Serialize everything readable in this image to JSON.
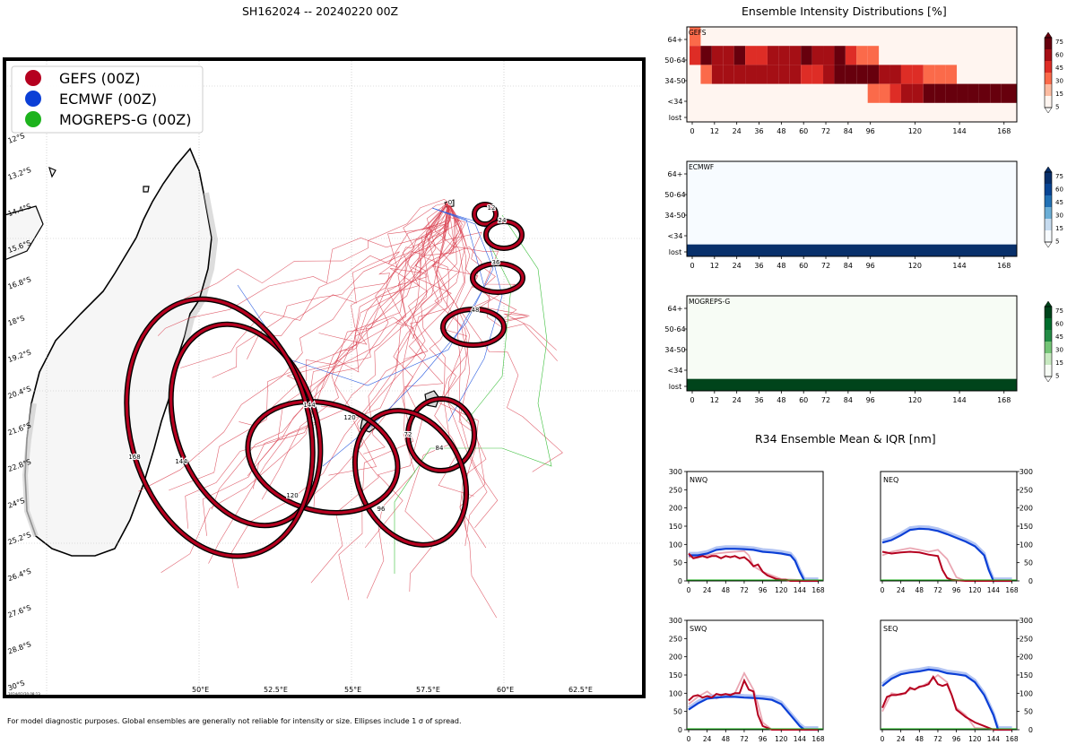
{
  "map": {
    "title": "SH162024 -- 20240220 00Z",
    "footnote": "For model diagnostic purposes. Global ensembles are generally not reliable for intensity or size. Ellipses include 1 σ of spread.",
    "legend": [
      {
        "label": "GEFS (00Z)",
        "color": "#b5001f"
      },
      {
        "label": "ECMWF (00Z)",
        "color": "#0b3fd6"
      },
      {
        "label": "MOGREPS-G (00Z)",
        "color": "#1db31d"
      }
    ],
    "lon_labels": [
      "50°E",
      "52.5°E",
      "55°E",
      "57.5°E",
      "60°E",
      "62.5°E"
    ],
    "lat_labels": [
      "12°S",
      "13.2°S",
      "14.4°S",
      "15.6°S",
      "16.8°S",
      "18°S",
      "19.2°S",
      "20.4°S",
      "21.6°S",
      "22.8°S",
      "24°S",
      "25.2°S",
      "26.4°S",
      "27.6°S",
      "28.8°S",
      "30°S"
    ],
    "ellipse_labels": [
      "0",
      "12",
      "24",
      "36",
      "48",
      "72",
      "96",
      "120",
      "144",
      "168",
      "84",
      "96",
      "120",
      "144"
    ],
    "timestamp": "2024/02/20 08:13"
  },
  "intensity": {
    "title": "Ensemble Intensity Distributions [%]",
    "y_labels": [
      "64+",
      "50-64",
      "34-50",
      "<34",
      "lost"
    ],
    "x_ticks": [
      "0",
      "12",
      "24",
      "36",
      "48",
      "60",
      "72",
      "84",
      "96",
      "120",
      "144",
      "168"
    ],
    "cbar_ticks": [
      "75",
      "60",
      "45",
      "30",
      "15",
      "5"
    ],
    "panels": [
      {
        "name": "GEFS",
        "cmap": "reds"
      },
      {
        "name": "ECMWF",
        "cmap": "blues"
      },
      {
        "name": "MOGREPS-G",
        "cmap": "greens"
      }
    ]
  },
  "r34": {
    "title": "R34 Ensemble Mean & IQR [nm]",
    "x_ticks": [
      "0",
      "24",
      "48",
      "72",
      "96",
      "120",
      "144",
      "168"
    ],
    "y_ticks": [
      "300",
      "250",
      "200",
      "150",
      "100",
      "50",
      "0"
    ],
    "colors": {
      "gefs": "#b5001f",
      "ecmwf": "#0b3fd6"
    }
  },
  "chart_data": [
    {
      "type": "heatmap",
      "title": "GEFS",
      "x": [
        0,
        6,
        12,
        18,
        24,
        30,
        36,
        42,
        48,
        54,
        60,
        66,
        72,
        78,
        84,
        90,
        96,
        102,
        108,
        114,
        120,
        126,
        132,
        138,
        144,
        150,
        156,
        162,
        168
      ],
      "rows": [
        "64+",
        "50-64",
        "34-50",
        "<34",
        "lost"
      ],
      "values": [
        [
          35,
          3,
          3,
          3,
          3,
          3,
          3,
          3,
          3,
          3,
          3,
          3,
          3,
          3,
          3,
          3,
          3,
          3,
          3,
          3,
          3,
          3,
          3,
          3,
          3,
          3,
          3,
          3,
          3
        ],
        [
          55,
          75,
          60,
          60,
          75,
          45,
          45,
          60,
          60,
          60,
          75,
          60,
          60,
          75,
          45,
          30,
          15,
          3,
          3,
          3,
          3,
          3,
          3,
          3,
          3,
          3,
          3,
          3,
          3
        ],
        [
          3,
          30,
          60,
          60,
          60,
          60,
          70,
          70,
          60,
          60,
          45,
          45,
          60,
          85,
          85,
          85,
          85,
          65,
          60,
          45,
          45,
          30,
          30,
          15,
          3,
          3,
          3,
          3,
          3
        ],
        [
          3,
          3,
          3,
          3,
          3,
          3,
          3,
          3,
          3,
          3,
          3,
          3,
          3,
          3,
          3,
          3,
          15,
          30,
          45,
          65,
          70,
          80,
          80,
          85,
          85,
          85,
          85,
          85,
          85
        ],
        [
          3,
          3,
          3,
          3,
          3,
          3,
          3,
          3,
          3,
          3,
          3,
          3,
          3,
          3,
          3,
          3,
          3,
          3,
          3,
          3,
          3,
          3,
          3,
          3,
          3,
          3,
          3,
          3,
          3
        ]
      ]
    },
    {
      "type": "heatmap",
      "title": "ECMWF",
      "x": [
        0,
        168
      ],
      "rows": [
        "64+",
        "50-64",
        "34-50",
        "<34",
        "lost"
      ],
      "values": [
        [
          0,
          0
        ],
        [
          0,
          0
        ],
        [
          0,
          0
        ],
        [
          0,
          0
        ],
        [
          100,
          100
        ]
      ]
    },
    {
      "type": "heatmap",
      "title": "MOGREPS-G",
      "x": [
        0,
        168
      ],
      "rows": [
        "64+",
        "50-64",
        "34-50",
        "<34",
        "lost"
      ],
      "values": [
        [
          0,
          0
        ],
        [
          0,
          0
        ],
        [
          0,
          0
        ],
        [
          0,
          0
        ],
        [
          100,
          100
        ]
      ]
    },
    {
      "type": "line",
      "title": "NWQ",
      "ylim": [
        0,
        300
      ],
      "xlim": [
        0,
        168
      ],
      "series": [
        {
          "name": "ECMWF mean",
          "x": [
            0,
            12,
            24,
            36,
            48,
            60,
            72,
            84,
            96,
            108,
            120,
            132,
            138,
            144,
            150,
            168
          ],
          "values": [
            70,
            70,
            75,
            85,
            88,
            88,
            87,
            85,
            80,
            78,
            75,
            70,
            55,
            25,
            0,
            0
          ]
        },
        {
          "name": "GEFS mean",
          "x": [
            0,
            6,
            12,
            18,
            24,
            30,
            36,
            42,
            48,
            54,
            60,
            66,
            72,
            78,
            84,
            90,
            96,
            102,
            108,
            114,
            120,
            126,
            132,
            144,
            168
          ],
          "values": [
            75,
            62,
            65,
            68,
            64,
            68,
            68,
            62,
            68,
            65,
            68,
            62,
            65,
            55,
            40,
            45,
            25,
            15,
            10,
            5,
            3,
            3,
            0,
            0,
            0
          ]
        },
        {
          "name": "GEFS IQR",
          "x": [
            0,
            12,
            24,
            36,
            48,
            60,
            72,
            78,
            84,
            96,
            108,
            120,
            168
          ],
          "values": [
            65,
            68,
            70,
            75,
            78,
            80,
            82,
            70,
            40,
            25,
            15,
            5,
            0
          ]
        }
      ]
    },
    {
      "type": "line",
      "title": "NEQ",
      "ylim": [
        0,
        300
      ],
      "xlim": [
        0,
        168
      ],
      "series": [
        {
          "name": "ECMWF mean",
          "x": [
            0,
            12,
            24,
            36,
            48,
            60,
            72,
            84,
            96,
            108,
            120,
            132,
            138,
            144,
            150,
            168
          ],
          "values": [
            105,
            112,
            125,
            140,
            143,
            142,
            137,
            128,
            118,
            108,
            95,
            70,
            30,
            0,
            0,
            0
          ]
        },
        {
          "name": "GEFS mean",
          "x": [
            0,
            12,
            24,
            36,
            48,
            60,
            72,
            78,
            84,
            90,
            96,
            108,
            120,
            168
          ],
          "values": [
            80,
            75,
            78,
            80,
            78,
            72,
            68,
            30,
            8,
            3,
            2,
            0,
            0,
            0
          ]
        },
        {
          "name": "GEFS IQR",
          "x": [
            0,
            12,
            24,
            36,
            48,
            60,
            72,
            84,
            96,
            108,
            168
          ],
          "values": [
            70,
            80,
            85,
            90,
            85,
            80,
            85,
            60,
            10,
            0,
            0
          ]
        }
      ]
    },
    {
      "type": "line",
      "title": "SWQ",
      "ylim": [
        0,
        300
      ],
      "xlim": [
        0,
        168
      ],
      "series": [
        {
          "name": "ECMWF mean",
          "x": [
            0,
            12,
            24,
            36,
            48,
            60,
            72,
            84,
            96,
            108,
            120,
            132,
            144,
            150,
            168
          ],
          "values": [
            55,
            72,
            85,
            88,
            90,
            90,
            88,
            87,
            85,
            82,
            70,
            40,
            10,
            0,
            0
          ]
        },
        {
          "name": "GEFS mean",
          "x": [
            0,
            6,
            12,
            18,
            24,
            30,
            36,
            42,
            48,
            54,
            60,
            66,
            72,
            78,
            84,
            90,
            96,
            108,
            120,
            168
          ],
          "values": [
            80,
            92,
            95,
            88,
            92,
            88,
            98,
            95,
            98,
            95,
            100,
            100,
            135,
            110,
            105,
            40,
            10,
            0,
            0,
            0
          ]
        },
        {
          "name": "GEFS IQR",
          "x": [
            0,
            12,
            24,
            36,
            48,
            60,
            72,
            84,
            90,
            96,
            108,
            168
          ],
          "values": [
            70,
            90,
            105,
            85,
            95,
            100,
            155,
            110,
            70,
            20,
            0,
            0
          ]
        }
      ]
    },
    {
      "type": "line",
      "title": "SEQ",
      "ylim": [
        0,
        300
      ],
      "xlim": [
        0,
        168
      ],
      "series": [
        {
          "name": "ECMWF mean",
          "x": [
            0,
            12,
            24,
            36,
            48,
            60,
            72,
            84,
            96,
            108,
            120,
            132,
            144,
            150,
            168
          ],
          "values": [
            120,
            140,
            152,
            157,
            160,
            165,
            162,
            155,
            152,
            148,
            130,
            95,
            40,
            0,
            0
          ]
        },
        {
          "name": "GEFS mean",
          "x": [
            0,
            6,
            12,
            18,
            24,
            30,
            36,
            42,
            48,
            54,
            60,
            66,
            72,
            78,
            84,
            90,
            96,
            102,
            108,
            120,
            132,
            144,
            168
          ],
          "values": [
            60,
            90,
            95,
            95,
            98,
            100,
            115,
            110,
            118,
            120,
            125,
            145,
            125,
            120,
            125,
            95,
            55,
            45,
            35,
            20,
            10,
            0,
            0
          ]
        },
        {
          "name": "GEFS IQR",
          "x": [
            0,
            12,
            24,
            36,
            48,
            60,
            66,
            72,
            84,
            96,
            108,
            120,
            168
          ],
          "values": [
            50,
            100,
            95,
            110,
            115,
            130,
            140,
            150,
            130,
            60,
            40,
            5,
            0
          ]
        }
      ]
    }
  ]
}
